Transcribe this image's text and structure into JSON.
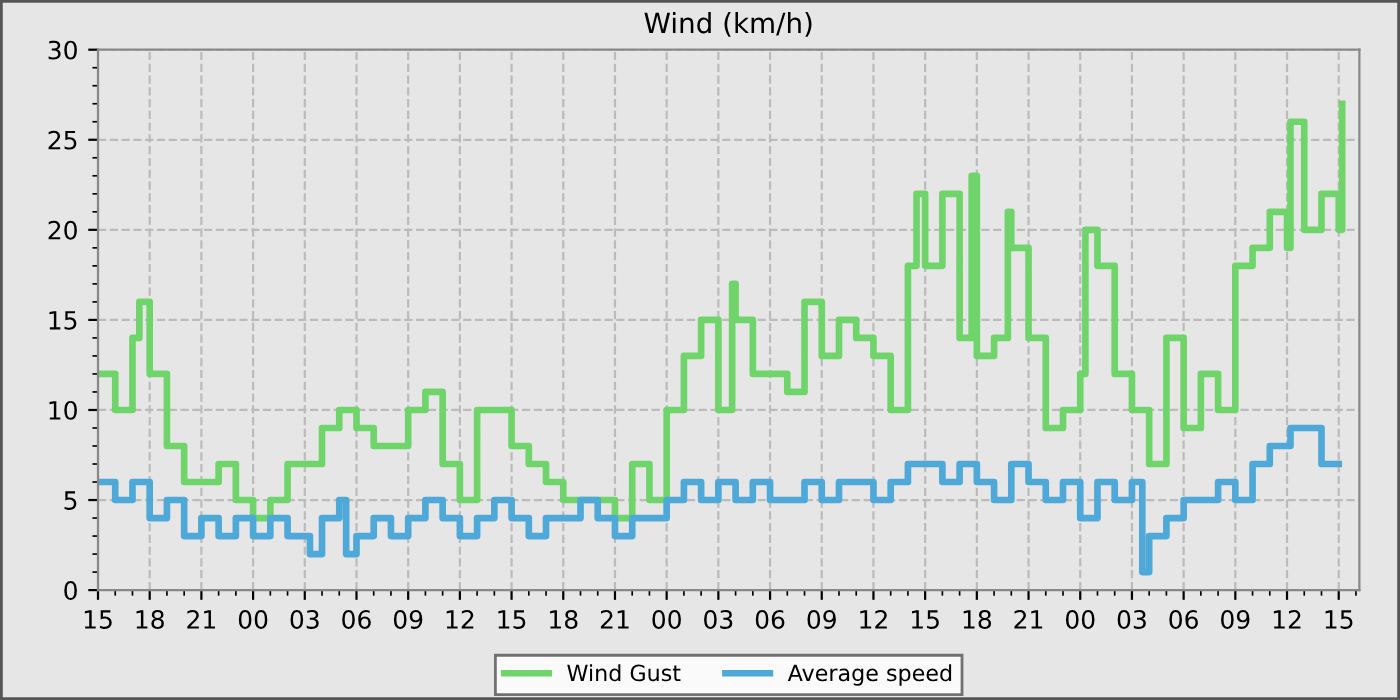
{
  "chart_data": {
    "type": "step",
    "title": "Wind (km/h)",
    "xlim": [
      15,
      88.2
    ],
    "ylim": [
      0,
      30
    ],
    "yticks": [
      0,
      5,
      10,
      15,
      20,
      25,
      30
    ],
    "xticks": [
      15,
      18,
      21,
      {
        "value": 24,
        "label": "00"
      },
      {
        "value": 27,
        "label": "03"
      },
      {
        "value": 30,
        "label": "06"
      },
      {
        "value": 33,
        "label": "09"
      },
      {
        "value": 36,
        "label": "12"
      },
      {
        "value": 39,
        "label": "15"
      },
      {
        "value": 42,
        "label": "18"
      },
      {
        "value": 45,
        "label": "21"
      },
      {
        "value": 48,
        "label": "00"
      },
      {
        "value": 51,
        "label": "03"
      },
      {
        "value": 54,
        "label": "06"
      },
      {
        "value": 57,
        "label": "09"
      },
      {
        "value": 60,
        "label": "12"
      },
      {
        "value": 63,
        "label": "15"
      },
      {
        "value": 66,
        "label": "18"
      },
      {
        "value": 69,
        "label": "21"
      },
      {
        "value": 72,
        "label": "00"
      },
      {
        "value": 75,
        "label": "03"
      },
      {
        "value": 78,
        "label": "06"
      },
      {
        "value": 81,
        "label": "09"
      },
      {
        "value": 84,
        "label": "12"
      },
      {
        "value": 87,
        "label": "15"
      }
    ],
    "grid": true,
    "legend": "bottom",
    "line_style": "solid",
    "series": [
      {
        "name": "Wind Gust",
        "color": "#6fd56b",
        "x": [
          15,
          16,
          17,
          17.4,
          18,
          19,
          20,
          21,
          22,
          23,
          24,
          25,
          26,
          27,
          28,
          29,
          30,
          31,
          32,
          33,
          34,
          35,
          36,
          37,
          38,
          39,
          40,
          41,
          42,
          43,
          44,
          45,
          46,
          47,
          48,
          49,
          50,
          51,
          51.8,
          52,
          53,
          54,
          55,
          56,
          57,
          58,
          59,
          60,
          61,
          62,
          62.5,
          63,
          64,
          65,
          65.7,
          66,
          67,
          67.8,
          68,
          69,
          70,
          71,
          72,
          72.3,
          73,
          74,
          75,
          76,
          77,
          78,
          79,
          80,
          81,
          82,
          83,
          84,
          84.2,
          85,
          86,
          87,
          87.2
        ],
        "values": [
          12,
          10,
          14,
          16,
          12,
          8,
          6,
          6,
          7,
          5,
          4,
          5,
          7,
          7,
          9,
          10,
          9,
          8,
          8,
          10,
          11,
          7,
          5,
          10,
          10,
          8,
          7,
          6,
          5,
          5,
          5,
          4,
          7,
          5,
          10,
          13,
          15,
          10,
          17,
          15,
          12,
          12,
          11,
          16,
          13,
          15,
          14,
          13,
          10,
          18,
          22,
          18,
          22,
          14,
          23,
          13,
          14,
          21,
          19,
          14,
          9,
          10,
          12,
          20,
          18,
          12,
          10,
          7,
          14,
          9,
          12,
          10,
          18,
          19,
          21,
          19,
          26,
          20,
          22,
          20,
          27
        ]
      },
      {
        "name": "Average speed",
        "color": "#4ea8d8",
        "x": [
          15,
          16,
          17,
          18,
          19,
          20,
          21,
          22,
          23,
          24,
          25,
          26,
          27,
          27.3,
          28,
          29,
          29.4,
          30,
          31,
          32,
          33,
          34,
          35,
          36,
          37,
          38,
          39,
          40,
          41,
          42,
          43,
          44,
          45,
          46,
          47,
          48,
          49,
          50,
          51,
          52,
          53,
          54,
          55,
          56,
          57,
          58,
          59,
          60,
          61,
          62,
          63,
          64,
          65,
          66,
          67,
          68,
          69,
          70,
          71,
          72,
          73,
          74,
          75,
          75.6,
          76,
          77,
          78,
          79,
          80,
          81,
          82,
          83,
          84,
          84.2,
          85,
          86,
          87
        ],
        "values": [
          6,
          5,
          6,
          4,
          5,
          3,
          4,
          3,
          4,
          3,
          4,
          3,
          3,
          2,
          4,
          5,
          2,
          3,
          4,
          3,
          4,
          5,
          4,
          3,
          4,
          5,
          4,
          3,
          4,
          4,
          5,
          4,
          3,
          4,
          4,
          5,
          6,
          5,
          6,
          5,
          6,
          5,
          5,
          6,
          5,
          6,
          6,
          5,
          6,
          7,
          7,
          6,
          7,
          6,
          5,
          7,
          6,
          5,
          6,
          4,
          6,
          5,
          6,
          1,
          3,
          4,
          5,
          5,
          6,
          5,
          7,
          8,
          8,
          9,
          9,
          7,
          7
        ]
      }
    ]
  }
}
